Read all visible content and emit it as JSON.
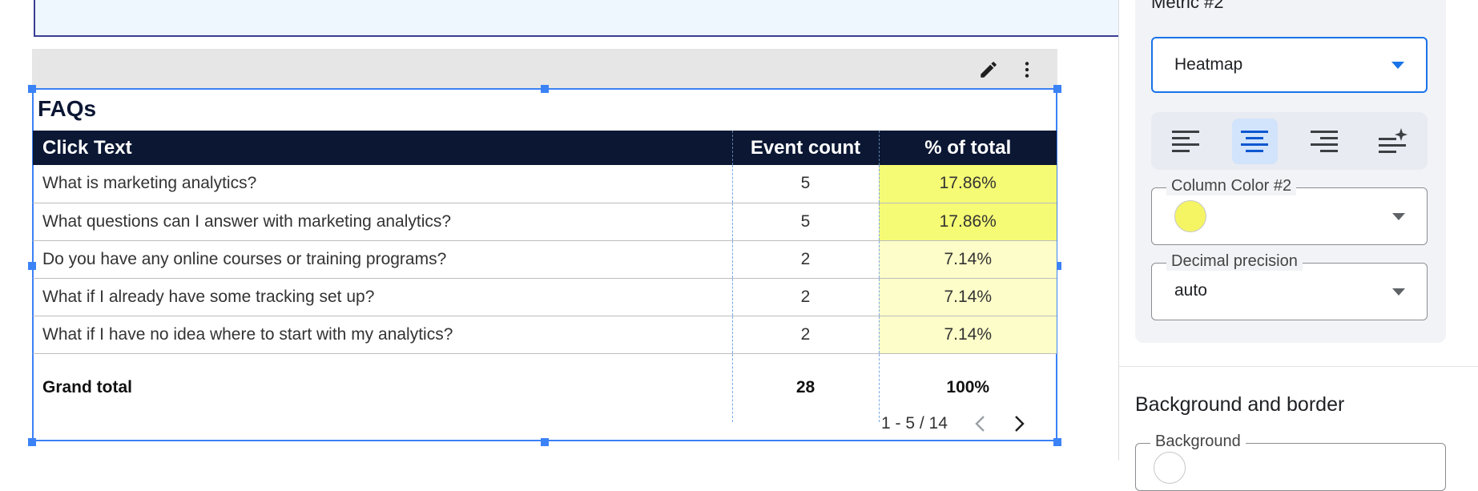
{
  "chart": {
    "title": "FAQs",
    "columns": [
      "Click Text",
      "Event count",
      "% of total"
    ],
    "rows": [
      {
        "text": "What is marketing analytics?",
        "count": "5",
        "pct": "17.86%",
        "heat": 0.9
      },
      {
        "text": "What questions can I answer with marketing analytics?",
        "count": "5",
        "pct": "17.86%",
        "heat": 0.9
      },
      {
        "text": "Do you have any online courses or training programs?",
        "count": "2",
        "pct": "7.14%",
        "heat": 0.35
      },
      {
        "text": "What if I already have some tracking set up?",
        "count": "2",
        "pct": "7.14%",
        "heat": 0.35
      },
      {
        "text": "What if I have no idea where to start with my analytics?",
        "count": "2",
        "pct": "7.14%",
        "heat": 0.35
      }
    ],
    "total": {
      "label": "Grand total",
      "count": "28",
      "pct": "100%"
    },
    "pagination": "1 - 5 / 14",
    "heat_color_strong": "#f5fb74",
    "heat_color_light": "#fcfdc8"
  },
  "toolbar": {
    "edit_icon": "pencil-icon",
    "more_icon": "more-vert-icon"
  },
  "panel": {
    "metric_label": "Metric #2",
    "display_type": "Heatmap",
    "alignment_options": [
      "align-left",
      "align-center",
      "align-right",
      "align-auto"
    ],
    "alignment_selected": "align-center",
    "column_color_label": "Column Color #2",
    "column_color": "#f5f564",
    "decimal_label": "Decimal precision",
    "decimal_value": "auto",
    "section_title": "Background and border",
    "background_label": "Background"
  },
  "colors": {
    "accent": "#1a73e8",
    "header_bg": "#0b1733",
    "selection": "#3b82f6"
  }
}
